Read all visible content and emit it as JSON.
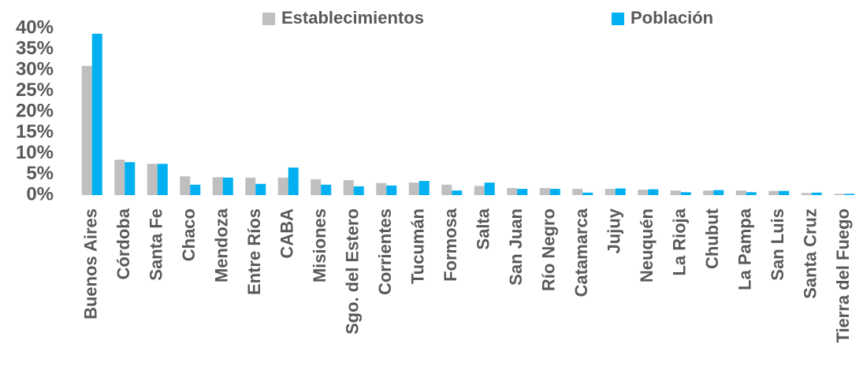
{
  "chart_data": {
    "type": "bar",
    "categories": [
      "Buenos Aires",
      "Córdoba",
      "Santa Fe",
      "Chaco",
      "Mendoza",
      "Entre Ríos",
      "CABA",
      "Misiones",
      "Sgo. del Estero",
      "Corrientes",
      "Tucumán",
      "Formosa",
      "Salta",
      "San Juan",
      "Río Negro",
      "Catamarca",
      "Jujuy",
      "Neuquén",
      "La Rioja",
      "Chubut",
      "La Pampa",
      "San Luis",
      "Santa Cruz",
      "Tierra del Fuego"
    ],
    "series": [
      {
        "name": "Establecimientos",
        "color": "#bfbfbf",
        "values": [
          31,
          8.5,
          7.5,
          4.5,
          4.3,
          4.2,
          4.2,
          3.8,
          3.6,
          2.9,
          3.0,
          2.5,
          2.2,
          1.7,
          1.7,
          1.5,
          1.5,
          1.3,
          1.1,
          1.1,
          1.1,
          1.0,
          0.5,
          0.3
        ]
      },
      {
        "name": "Población",
        "color": "#00b0f0",
        "values": [
          38.7,
          7.9,
          7.5,
          2.5,
          4.2,
          2.7,
          6.6,
          2.5,
          2.1,
          2.3,
          3.4,
          1.1,
          3.0,
          1.5,
          1.5,
          0.6,
          1.6,
          1.4,
          0.7,
          1.2,
          0.7,
          1.0,
          0.6,
          0.3
        ]
      }
    ],
    "ylim": [
      0,
      40
    ],
    "yticks": [
      {
        "value": 0,
        "label": "0%"
      },
      {
        "value": 5,
        "label": "5%"
      },
      {
        "value": 10,
        "label": "10%"
      },
      {
        "value": 15,
        "label": "15%"
      },
      {
        "value": 20,
        "label": "20%"
      },
      {
        "value": 25,
        "label": "25%"
      },
      {
        "value": 30,
        "label": "30%"
      },
      {
        "value": 35,
        "label": "35%"
      },
      {
        "value": 40,
        "label": "40%"
      }
    ],
    "legend": "top",
    "grid": false
  }
}
